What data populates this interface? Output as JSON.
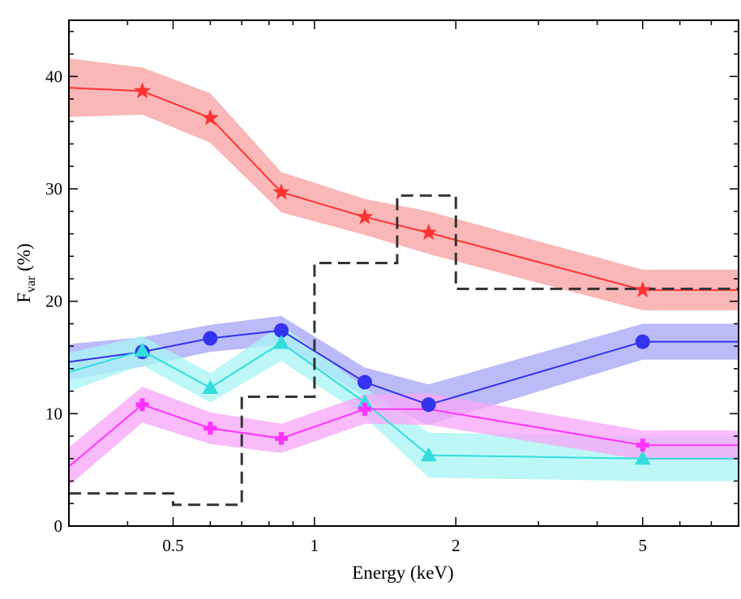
{
  "chart_data": {
    "type": "line",
    "xlabel": "Energy (keV)",
    "ylabel": {
      "main": "F",
      "sub": "var",
      "suffix": " (%)"
    },
    "xscale": "log",
    "xlim": [
      0.3,
      8
    ],
    "ylim": [
      0,
      45
    ],
    "x_ticks": [
      0.5,
      1,
      2,
      5
    ],
    "x_tick_labels": [
      "0.5",
      "1",
      "2",
      "5"
    ],
    "y_ticks": [
      0,
      10,
      20,
      30,
      40
    ],
    "y_tick_labels": [
      "0",
      "10",
      "20",
      "30",
      "40"
    ],
    "grid": false,
    "series": [
      {
        "color": "#ff3333",
        "band_color": "#f7a3a3",
        "marker": "star",
        "x": [
          0.3,
          0.43,
          0.6,
          0.85,
          1.28,
          1.75,
          5,
          8
        ],
        "y": [
          39.0,
          38.7,
          36.3,
          29.7,
          27.5,
          26.1,
          21.0,
          21.0
        ],
        "err": [
          2.6,
          2.1,
          2.2,
          1.8,
          1.6,
          1.9,
          1.8,
          1.8
        ],
        "markers_at": [
          0.43,
          0.6,
          0.85,
          1.28,
          1.75,
          5
        ]
      },
      {
        "color": "#3333ee",
        "band_color": "#a8a8f7",
        "marker": "circle",
        "x": [
          0.3,
          0.43,
          0.6,
          0.85,
          1.28,
          1.75,
          5,
          8
        ],
        "y": [
          14.6,
          15.5,
          16.7,
          17.4,
          12.8,
          10.8,
          16.4,
          16.4
        ],
        "err": [
          1.6,
          1.3,
          1.2,
          1.3,
          1.3,
          1.8,
          1.6,
          1.6
        ],
        "markers_at": [
          0.43,
          0.6,
          0.85,
          1.28,
          1.75,
          5
        ]
      },
      {
        "color": "#33dddd",
        "band_color": "#aaf5f5",
        "marker": "triangle",
        "x": [
          0.3,
          0.43,
          0.6,
          0.85,
          1.28,
          1.75,
          5,
          8
        ],
        "y": [
          13.7,
          15.6,
          12.3,
          16.3,
          11.0,
          6.3,
          6.0,
          6.0
        ],
        "err": [
          1.7,
          1.3,
          1.3,
          1.6,
          1.3,
          2.0,
          2.0,
          2.0
        ],
        "markers_at": [
          0.43,
          0.6,
          0.85,
          1.28,
          1.75,
          5
        ]
      },
      {
        "color": "#ff33ff",
        "band_color": "#f7a8f7",
        "marker": "plus",
        "x": [
          0.3,
          0.43,
          0.6,
          0.85,
          1.28,
          1.75,
          5,
          8
        ],
        "y": [
          5.3,
          10.8,
          8.7,
          7.8,
          10.4,
          10.4,
          7.2,
          7.2
        ],
        "err": [
          1.7,
          1.6,
          1.4,
          1.3,
          1.3,
          1.4,
          1.3,
          1.3
        ],
        "markers_at": [
          0.43,
          1.28,
          0.6,
          0.85,
          5
        ]
      }
    ],
    "step": {
      "color": "#333333",
      "style": "dashed",
      "edges": [
        0.3,
        0.5,
        0.7,
        1.0,
        1.5,
        2.0,
        8.0
      ],
      "values": [
        2.9,
        1.9,
        11.5,
        23.4,
        29.4,
        21.1
      ]
    }
  }
}
